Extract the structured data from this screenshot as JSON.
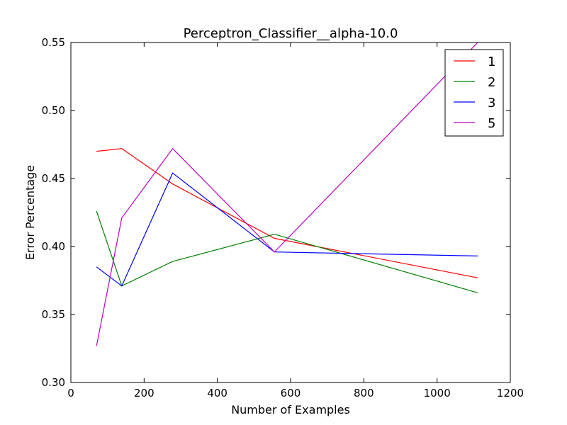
{
  "chart_data": {
    "type": "line",
    "title": "Perceptron_Classifier__alpha-10.0",
    "xlabel": "Number of Examples",
    "ylabel": "Error Percentage",
    "xlim": [
      0,
      1200
    ],
    "ylim": [
      0.3,
      0.55
    ],
    "xticks": [
      0,
      200,
      400,
      600,
      800,
      1000,
      1200
    ],
    "xtick_labels": [
      "0",
      "200",
      "400",
      "600",
      "800",
      "1000",
      "1200"
    ],
    "yticks": [
      0.3,
      0.35,
      0.4,
      0.45,
      0.5,
      0.55
    ],
    "ytick_labels": [
      "0.30",
      "0.35",
      "0.40",
      "0.45",
      "0.50",
      "0.55"
    ],
    "grid": false,
    "legend_position": "top-right",
    "x": [
      70,
      139,
      278,
      556,
      1111
    ],
    "series": [
      {
        "name": "1",
        "color": "#ff0000",
        "values": [
          0.47,
          0.472,
          0.446,
          0.406,
          0.377
        ]
      },
      {
        "name": "2",
        "color": "#008000",
        "values": [
          0.426,
          0.371,
          0.389,
          0.409,
          0.366
        ]
      },
      {
        "name": "3",
        "color": "#0000ff",
        "values": [
          0.385,
          0.371,
          0.454,
          0.396,
          0.393
        ]
      },
      {
        "name": "5",
        "color": "#bf00bf",
        "values": [
          0.327,
          0.421,
          0.472,
          0.396,
          0.55
        ]
      }
    ]
  }
}
